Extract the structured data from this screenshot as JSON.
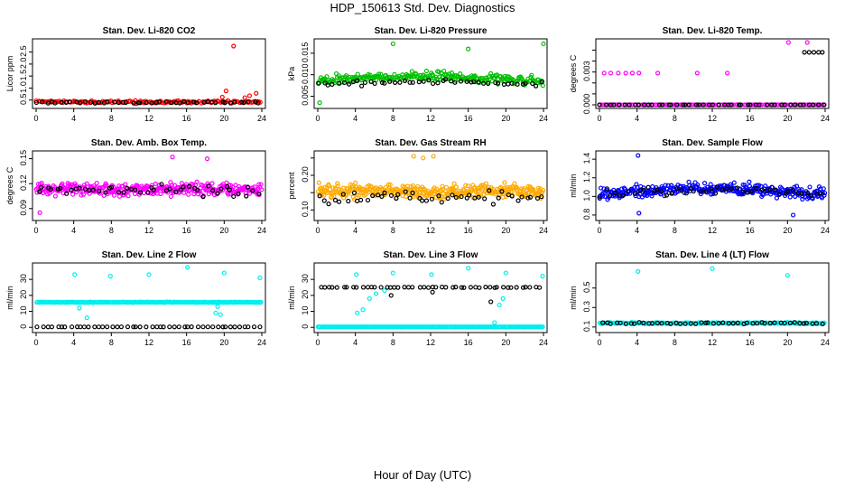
{
  "title": "HDP_150613  Std. Dev. Diagnostics",
  "xlabel": "Hour of Day (UTC)",
  "chart_data": [
    {
      "type": "scatter",
      "title": "Stan. Dev. Li-820 CO2",
      "ylabel": "Licor ppm",
      "xlim": [
        0,
        24
      ],
      "ylim": [
        0.3,
        2.9
      ],
      "xticks": [
        0,
        4,
        8,
        12,
        16,
        20,
        24
      ],
      "yticks": [
        0.5,
        1.0,
        1.5,
        2.0,
        2.5
      ],
      "ytick_labels": [
        "0.5",
        "1.0",
        "1.5",
        "2.0",
        "2.5"
      ],
      "series": [
        {
          "color": "#ff0000",
          "base": 0.42,
          "spread": 0.07,
          "n": 140,
          "extra": [
            [
              21,
              2.75
            ],
            [
              20.2,
              0.88
            ],
            [
              19.8,
              0.62
            ],
            [
              22.7,
              0.68
            ],
            [
              23.4,
              0.78
            ],
            [
              22.2,
              0.6
            ]
          ]
        },
        {
          "color": "#000000",
          "base": 0.4,
          "spread": 0.05,
          "n": 48,
          "extra": []
        }
      ]
    },
    {
      "type": "scatter",
      "title": "Stan. Dev. Li-820 Pressure",
      "ylabel": "kPa",
      "xlim": [
        0,
        24
      ],
      "ylim": [
        0.003,
        0.0175
      ],
      "xticks": [
        0,
        4,
        8,
        12,
        16,
        20,
        24
      ],
      "yticks": [
        0.005,
        0.01,
        0.015
      ],
      "ytick_labels": [
        "0.005",
        "0.010",
        "0.015"
      ],
      "series": [
        {
          "color": "#00c000",
          "base": 0.0085,
          "spread": 0.0017,
          "n": 260,
          "extra": [
            [
              8,
              0.0172
            ],
            [
              16,
              0.016
            ],
            [
              24,
              0.0172
            ],
            [
              0.2,
              0.0035
            ]
          ]
        },
        {
          "color": "#000000",
          "base": 0.0078,
          "spread": 0.0008,
          "n": 48,
          "extra": []
        }
      ]
    },
    {
      "type": "scatter",
      "title": "Stan. Dev. Li-820 Temp.",
      "ylabel": "degrees C",
      "xlim": [
        0,
        24
      ],
      "ylim": [
        0,
        0.0057
      ],
      "xticks": [
        0,
        4,
        8,
        12,
        16,
        20,
        24
      ],
      "yticks": [
        0,
        0.001,
        0.002,
        0.003,
        0.004,
        0.005
      ],
      "ytick_labels": [
        "0.000",
        "",
        "",
        "0.003",
        "",
        ""
      ],
      "series": [
        {
          "color": "#ff00ff",
          "base": 0,
          "spread": 0,
          "n": 110,
          "extra": [
            [
              0.5,
              0.0029
            ],
            [
              1.2,
              0.0029
            ],
            [
              2.0,
              0.0029
            ],
            [
              2.8,
              0.0029
            ],
            [
              3.5,
              0.0029
            ],
            [
              4.2,
              0.0029
            ],
            [
              6.2,
              0.0029
            ],
            [
              10.4,
              0.0029
            ],
            [
              13.6,
              0.0029
            ],
            [
              20.1,
              0.0057
            ],
            [
              22.1,
              0.0057
            ]
          ]
        },
        {
          "color": "#000000",
          "base": 0,
          "spread": 0,
          "n": 48,
          "extra": [
            [
              21.8,
              0.0048
            ],
            [
              22.3,
              0.0048
            ],
            [
              22.8,
              0.0048
            ],
            [
              23.3,
              0.0048
            ],
            [
              23.7,
              0.0048
            ]
          ]
        }
      ]
    },
    {
      "type": "scatter",
      "title": "Stan. Dev. Amb. Box Temp.",
      "ylabel": "degrees C",
      "xlim": [
        0,
        24
      ],
      "ylim": [
        0.08,
        0.155
      ],
      "xticks": [
        0,
        4,
        8,
        12,
        16,
        20,
        24
      ],
      "yticks": [
        0.09,
        0.12,
        0.15
      ],
      "ytick_labels": [
        "0.09",
        "0.12",
        "0.15"
      ],
      "series": [
        {
          "color": "#ff00ff",
          "base": 0.113,
          "spread": 0.011,
          "n": 330,
          "extra": [
            [
              0.4,
              0.085
            ],
            [
              14.5,
              0.152
            ],
            [
              18.2,
              0.15
            ]
          ]
        },
        {
          "color": "#000000",
          "base": 0.112,
          "spread": 0.01,
          "n": 48,
          "extra": []
        }
      ]
    },
    {
      "type": "scatter",
      "title": "Stan. Dev. Gas Stream RH",
      "ylabel": "percent",
      "xlim": [
        0,
        24
      ],
      "ylim": [
        0.08,
        0.26
      ],
      "xticks": [
        0,
        4,
        8,
        12,
        16,
        20,
        24
      ],
      "yticks": [
        0.1,
        0.15,
        0.2,
        0.25
      ],
      "ytick_labels": [
        "0.10",
        "",
        "0.20",
        ""
      ],
      "series": [
        {
          "color": "#ffaa00",
          "base": 0.155,
          "spread": 0.03,
          "n": 340,
          "extra": [
            [
              10.2,
              0.255
            ],
            [
              11.2,
              0.25
            ],
            [
              12.3,
              0.255
            ]
          ]
        },
        {
          "color": "#000000",
          "base": 0.135,
          "spread": 0.025,
          "n": 48,
          "extra": []
        }
      ]
    },
    {
      "type": "scatter",
      "title": "Stan. Dev. Sample Flow",
      "ylabel": "ml/min",
      "xlim": [
        0,
        24
      ],
      "ylim": [
        0.78,
        1.45
      ],
      "xticks": [
        0,
        4,
        8,
        12,
        16,
        20,
        24
      ],
      "yticks": [
        0.8,
        1.0,
        1.2,
        1.4
      ],
      "ytick_labels": [
        "0.8",
        "1.0",
        "1.2",
        "1.4"
      ],
      "series": [
        {
          "color": "#0000ff",
          "base": 1.03,
          "spread": 0.09,
          "n": 320,
          "extra": [
            [
              4.1,
              1.44
            ],
            [
              4.2,
              0.82
            ],
            [
              20.6,
              0.8
            ]
          ]
        },
        {
          "color": "#000000",
          "base": 1.02,
          "spread": 0.07,
          "n": 48,
          "extra": []
        }
      ]
    },
    {
      "type": "scatter",
      "title": "Stan. Dev. Line 2 Flow",
      "ylabel": "ml/min",
      "xlim": [
        0,
        24
      ],
      "ylim": [
        -1,
        38
      ],
      "xticks": [
        0,
        4,
        8,
        12,
        16,
        20,
        24
      ],
      "yticks": [
        0,
        10,
        20,
        30
      ],
      "ytick_labels": [
        "0",
        "10",
        "20",
        "30"
      ],
      "series": [
        {
          "color": "#00eeee",
          "base": 15.7,
          "spread": 0.3,
          "n": 220,
          "extra": [
            [
              4.1,
              33
            ],
            [
              7.9,
              32
            ],
            [
              12.0,
              33
            ],
            [
              16.1,
              37.5
            ],
            [
              20.0,
              34
            ],
            [
              23.8,
              31
            ],
            [
              5.4,
              6
            ],
            [
              4.6,
              12
            ],
            [
              19.3,
              13
            ],
            [
              19.6,
              8
            ],
            [
              19.1,
              9
            ]
          ]
        },
        {
          "color": "#000000",
          "base": 0.3,
          "spread": 0.05,
          "n": 48,
          "extra": []
        }
      ]
    },
    {
      "type": "scatter",
      "title": "Stan. Dev. Line 3 Flow",
      "ylabel": "ml/min",
      "xlim": [
        0,
        24
      ],
      "ylim": [
        -1,
        38
      ],
      "xticks": [
        0,
        4,
        8,
        12,
        16,
        20,
        24
      ],
      "yticks": [
        0,
        10,
        20,
        30
      ],
      "ytick_labels": [
        "0",
        "10",
        "20",
        "30"
      ],
      "series": [
        {
          "color": "#00eeee",
          "base": 0.3,
          "spread": 0.05,
          "n": 220,
          "extra": [
            [
              4.1,
              33
            ],
            [
              8.0,
              34
            ],
            [
              12.1,
              33
            ],
            [
              16.0,
              37
            ],
            [
              20.0,
              34
            ],
            [
              23.9,
              32
            ],
            [
              4.2,
              9
            ],
            [
              4.8,
              11
            ],
            [
              5.5,
              18
            ],
            [
              6.2,
              21
            ],
            [
              7.1,
              23
            ],
            [
              18.8,
              3
            ],
            [
              19.3,
              14
            ],
            [
              19.7,
              18
            ]
          ]
        },
        {
          "color": "#000000",
          "base": 25,
          "spread": 0.3,
          "n": 48,
          "extra": [
            [
              7.8,
              20
            ],
            [
              18.4,
              16
            ],
            [
              12.2,
              22
            ]
          ]
        }
      ]
    },
    {
      "type": "scatter",
      "title": "Stan. Dev. Line 4 (LT) Flow",
      "ylabel": "ml/min",
      "xlim": [
        0,
        24
      ],
      "ylim": [
        0.08,
        0.72
      ],
      "xticks": [
        0,
        4,
        8,
        12,
        16,
        20,
        24
      ],
      "yticks": [
        0.1,
        0.3,
        0.5
      ],
      "ytick_labels": [
        "0.1",
        "0.3",
        "0.5"
      ],
      "series": [
        {
          "color": "#00eeee",
          "base": 0.14,
          "spread": 0.01,
          "n": 240,
          "extra": [
            [
              4.1,
              0.67
            ],
            [
              12.0,
              0.7
            ],
            [
              20.0,
              0.63
            ]
          ]
        },
        {
          "color": "#000000",
          "base": 0.14,
          "spread": 0.012,
          "n": 48,
          "extra": []
        }
      ]
    }
  ]
}
